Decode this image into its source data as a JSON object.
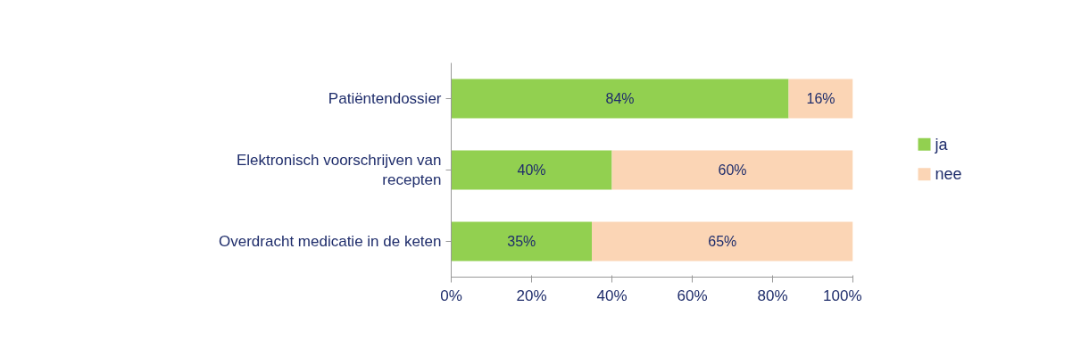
{
  "chart_data": {
    "type": "bar",
    "orientation": "horizontal",
    "stacked": true,
    "categories": [
      "Patiëntendossier",
      "Elektronisch voorschrijven van recepten",
      "Overdracht medicatie in de keten"
    ],
    "series": [
      {
        "name": "ja",
        "color": "#92d050",
        "values": [
          84,
          40,
          35
        ],
        "value_labels": [
          "84%",
          "40%",
          "35%"
        ]
      },
      {
        "name": "nee",
        "color": "#fbd5b5",
        "values": [
          16,
          60,
          65
        ],
        "value_labels": [
          "16%",
          "60%",
          "65%"
        ]
      }
    ],
    "xlim": [
      0,
      100
    ],
    "xticks": [
      {
        "value": 0,
        "label": "0%"
      },
      {
        "value": 20,
        "label": "20%"
      },
      {
        "value": 40,
        "label": "40%"
      },
      {
        "value": 60,
        "label": "60%"
      },
      {
        "value": 80,
        "label": "80%"
      },
      {
        "value": 100,
        "label": "100%"
      }
    ],
    "grid": false,
    "legend": "right"
  }
}
